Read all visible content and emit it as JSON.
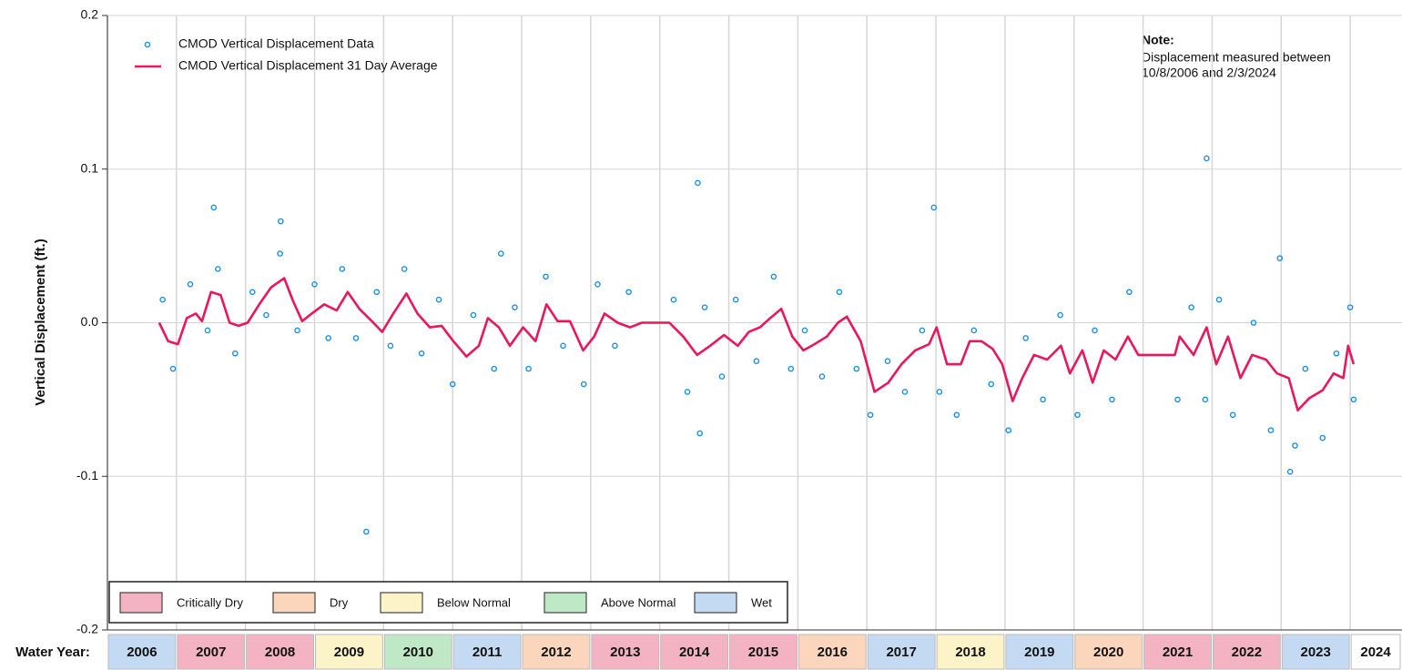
{
  "chart_data": {
    "type": "scatter",
    "ylabel": "Vertical Displacement (ft.)",
    "xlim": [
      2006,
      2024.75
    ],
    "xticks": [
      2006,
      2007,
      2008,
      2009,
      2010,
      2011,
      2012,
      2013,
      2014,
      2015,
      2016,
      2017,
      2018,
      2019,
      2020,
      2021,
      2022,
      2023,
      2024
    ],
    "ylim": [
      -0.2,
      0.2
    ],
    "yticks": [
      0.2,
      0.1,
      {
        "value": 0,
        "label": "0.0"
      },
      -0.1,
      -0.2
    ],
    "grid": true,
    "series": [
      {
        "name": "CMOD Vertical Displacement Data",
        "type": "scatter",
        "color": "#1e8fe0",
        "x": [
          2006.8,
          2006.95,
          2007.2,
          2007.45,
          2007.6,
          2007.85,
          2008.1,
          2008.3,
          2008.5,
          2008.75,
          2009.0,
          2009.2,
          2009.4,
          2009.6,
          2009.9,
          2010.1,
          2010.3,
          2010.55,
          2010.8,
          2011.0,
          2011.3,
          2011.6,
          2011.9,
          2012.1,
          2012.35,
          2012.6,
          2012.9,
          2013.1,
          2013.35,
          2013.55,
          2014.2,
          2014.4,
          2014.65,
          2014.9,
          2015.1,
          2015.4,
          2015.65,
          2015.9,
          2016.1,
          2016.35,
          2016.6,
          2016.85,
          2017.05,
          2017.3,
          2017.55,
          2017.8,
          2018.05,
          2018.3,
          2018.55,
          2018.8,
          2019.05,
          2019.3,
          2019.55,
          2019.8,
          2020.05,
          2020.3,
          2020.55,
          2020.8,
          2021.5,
          2021.7,
          2021.9,
          2022.1,
          2022.3,
          2022.6,
          2022.85,
          2023.2,
          2023.35,
          2023.6,
          2023.8,
          2024.0,
          2024.05,
          2007.54,
          2008.51,
          2009.75,
          2011.7,
          2014.55,
          2014.58,
          2017.97,
          2021.92,
          2023.13,
          2022.98
        ],
        "values": [
          0.015,
          -0.03,
          0.025,
          -0.005,
          0.035,
          -0.02,
          0.02,
          0.005,
          0.045,
          -0.005,
          0.025,
          -0.01,
          0.035,
          -0.01,
          0.02,
          -0.015,
          0.035,
          -0.02,
          0.015,
          -0.04,
          0.005,
          -0.03,
          0.01,
          -0.03,
          0.03,
          -0.015,
          -0.04,
          0.025,
          -0.015,
          0.02,
          0.015,
          -0.045,
          0.01,
          -0.035,
          0.015,
          -0.025,
          0.03,
          -0.03,
          -0.005,
          -0.035,
          0.02,
          -0.03,
          -0.06,
          -0.025,
          -0.045,
          -0.005,
          -0.045,
          -0.06,
          -0.005,
          -0.04,
          -0.07,
          -0.01,
          -0.05,
          0.005,
          -0.06,
          -0.005,
          -0.05,
          0.02,
          -0.05,
          0.01,
          -0.05,
          0.015,
          -0.06,
          0.0,
          -0.07,
          -0.08,
          -0.03,
          -0.075,
          -0.02,
          0.01,
          -0.05,
          0.075,
          0.066,
          -0.136,
          0.045,
          0.091,
          -0.072,
          0.075,
          0.107,
          -0.097,
          0.042
        ]
      },
      {
        "name": "CMOD Vertical Displacement 31 Day Average",
        "type": "line",
        "color": "#e8185a",
        "x": [
          2006.75,
          2006.88,
          2007.02,
          2007.15,
          2007.28,
          2007.37,
          2007.5,
          2007.64,
          2007.77,
          2007.9,
          2008.03,
          2008.2,
          2008.37,
          2008.56,
          2008.69,
          2008.82,
          2008.96,
          2009.14,
          2009.32,
          2009.48,
          2009.65,
          2009.83,
          2009.98,
          2010.14,
          2010.33,
          2010.49,
          2010.67,
          2010.84,
          2011.01,
          2011.2,
          2011.38,
          2011.51,
          2011.67,
          2011.83,
          2012.02,
          2012.2,
          2012.36,
          2012.52,
          2012.7,
          2012.89,
          2013.05,
          2013.2,
          2013.39,
          2013.57,
          2013.74,
          2014.14,
          2014.34,
          2014.54,
          2014.73,
          2014.93,
          2015.13,
          2015.29,
          2015.45,
          2015.6,
          2015.76,
          2015.92,
          2016.08,
          2016.24,
          2016.42,
          2016.58,
          2016.71,
          2016.91,
          2017.11,
          2017.31,
          2017.5,
          2017.7,
          2017.9,
          2018.01,
          2018.16,
          2018.36,
          2018.49,
          2018.66,
          2018.82,
          2018.96,
          2019.11,
          2019.25,
          2019.42,
          2019.61,
          2019.81,
          2019.94,
          2020.12,
          2020.27,
          2020.43,
          2020.6,
          2020.78,
          2020.93,
          2021.46,
          2021.53,
          2021.73,
          2021.92,
          2022.06,
          2022.23,
          2022.41,
          2022.58,
          2022.78,
          2022.94,
          2023.11,
          2023.24,
          2023.41,
          2023.6,
          2023.76,
          2023.9,
          2023.97,
          2024.05
        ],
        "values": [
          0.0,
          -0.012,
          -0.014,
          0.003,
          0.006,
          0.001,
          0.02,
          0.018,
          0.0,
          -0.002,
          0.0,
          0.012,
          0.023,
          0.029,
          0.014,
          0.001,
          0.006,
          0.012,
          0.008,
          0.02,
          0.009,
          0.001,
          -0.006,
          0.006,
          0.019,
          0.006,
          -0.003,
          -0.002,
          -0.012,
          -0.022,
          -0.015,
          0.003,
          -0.003,
          -0.015,
          -0.003,
          -0.012,
          0.012,
          0.001,
          0.001,
          -0.018,
          -0.009,
          0.006,
          0.0,
          -0.003,
          0.0,
          0.0,
          -0.009,
          -0.021,
          -0.015,
          -0.008,
          -0.015,
          -0.006,
          -0.003,
          0.003,
          0.009,
          -0.009,
          -0.018,
          -0.014,
          -0.009,
          0.0,
          0.004,
          -0.012,
          -0.045,
          -0.039,
          -0.027,
          -0.018,
          -0.014,
          -0.003,
          -0.027,
          -0.027,
          -0.012,
          -0.012,
          -0.017,
          -0.027,
          -0.051,
          -0.036,
          -0.021,
          -0.024,
          -0.015,
          -0.033,
          -0.018,
          -0.039,
          -0.018,
          -0.024,
          -0.009,
          -0.021,
          -0.021,
          -0.009,
          -0.021,
          -0.003,
          -0.027,
          -0.009,
          -0.036,
          -0.021,
          -0.024,
          -0.033,
          -0.036,
          -0.057,
          -0.049,
          -0.044,
          -0.033,
          -0.036,
          -0.015,
          -0.027
        ]
      }
    ],
    "note": {
      "title": "Note:",
      "lines": [
        "Displacement measured between",
        "10/8/2006 and 2/3/2024"
      ]
    },
    "classes": [
      {
        "name": "Critically Dry",
        "color": "#f4b3c2"
      },
      {
        "name": "Dry",
        "color": "#fbd6bd"
      },
      {
        "name": "Below Normal",
        "color": "#fcf3c8"
      },
      {
        "name": "Above Normal",
        "color": "#bfe9c6"
      },
      {
        "name": "Wet",
        "color": "#c4daf2"
      }
    ],
    "water_year_label": "Water Year:",
    "water_years": [
      "2006",
      "2007",
      "2008",
      "2009",
      "2010",
      "2011",
      "2012",
      "2013",
      "2014",
      "2015",
      "2016",
      "2017",
      "2018",
      "2019",
      "2020",
      "2021",
      "2022",
      "2023",
      "2024"
    ],
    "water_year_classes": [
      "Wet",
      "Critically Dry",
      "Critically Dry",
      "Below Normal",
      "Above Normal",
      "Wet",
      "Dry",
      "Critically Dry",
      "Critically Dry",
      "Critically Dry",
      "Dry",
      "Wet",
      "Below Normal",
      "Wet",
      "Dry",
      "Critically Dry",
      "Critically Dry",
      "Wet",
      null
    ]
  }
}
